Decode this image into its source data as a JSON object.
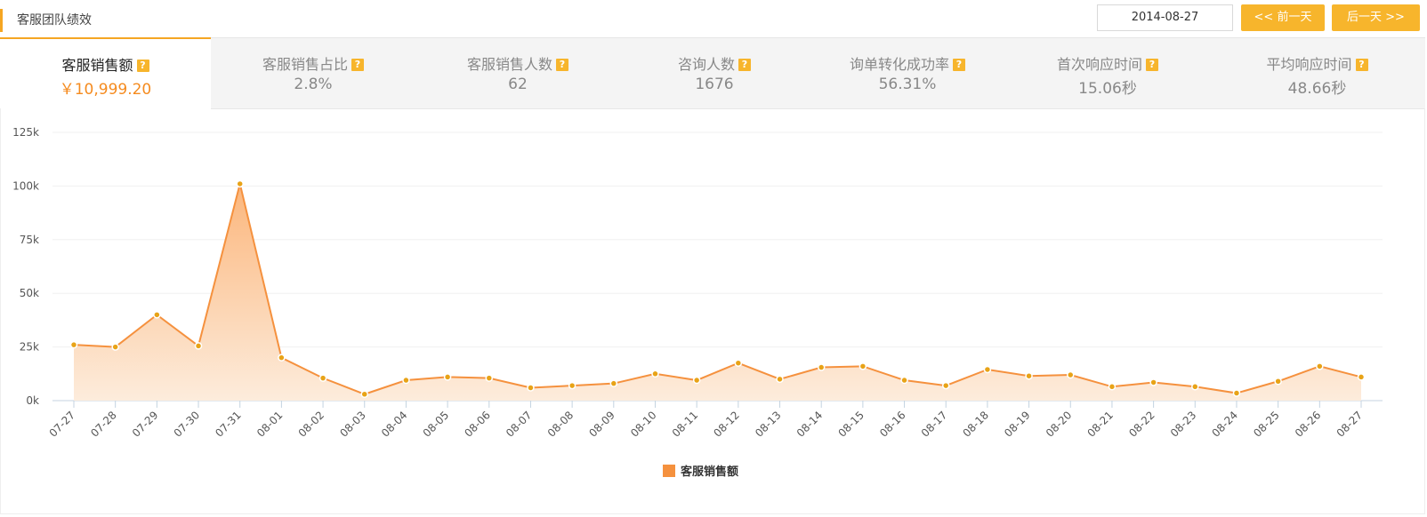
{
  "header": {
    "title": "客服团队绩效",
    "date": "2014-08-27",
    "prev_label": "<< 前一天",
    "next_label": "后一天 >>"
  },
  "tabs": [
    {
      "label": "客服销售额",
      "value": "￥10,999.20",
      "active": true
    },
    {
      "label": "客服销售占比",
      "value": "2.8%",
      "active": false
    },
    {
      "label": "客服销售人数",
      "value": "62",
      "active": false
    },
    {
      "label": "咨询人数",
      "value": "1676",
      "active": false
    },
    {
      "label": "询单转化成功率",
      "value": "56.31%",
      "active": false
    },
    {
      "label": "首次响应时间",
      "value": "15.06秒",
      "active": false
    },
    {
      "label": "平均响应时间",
      "value": "48.66秒",
      "active": false
    }
  ],
  "help_icon": "?",
  "colors": {
    "accent": "#f5a623",
    "line": "#f5913e",
    "point": "#e8a317",
    "area_top": "#fbb67c",
    "area_bottom": "#fdecdc"
  },
  "chart_data": {
    "type": "area",
    "x": [
      "07-27",
      "07-28",
      "07-29",
      "07-30",
      "07-31",
      "08-01",
      "08-02",
      "08-03",
      "08-04",
      "08-05",
      "08-06",
      "08-07",
      "08-08",
      "08-09",
      "08-10",
      "08-11",
      "08-12",
      "08-13",
      "08-14",
      "08-15",
      "08-16",
      "08-17",
      "08-18",
      "08-19",
      "08-20",
      "08-21",
      "08-22",
      "08-23",
      "08-24",
      "08-25",
      "08-26",
      "08-27"
    ],
    "series": [
      {
        "name": "客服销售额",
        "values": [
          26000,
          25000,
          40000,
          25500,
          101000,
          20000,
          10500,
          3000,
          9500,
          11000,
          10500,
          6000,
          7000,
          8000,
          12500,
          9500,
          17500,
          10000,
          15500,
          16000,
          9500,
          7000,
          14500,
          11500,
          12000,
          6500,
          8500,
          6500,
          3500,
          9000,
          16000,
          11000
        ]
      }
    ],
    "yticks": [
      "0k",
      "25k",
      "50k",
      "75k",
      "100k",
      "125k"
    ],
    "ylim": [
      0,
      125000
    ],
    "grid": true,
    "legend": "bottom-center"
  }
}
